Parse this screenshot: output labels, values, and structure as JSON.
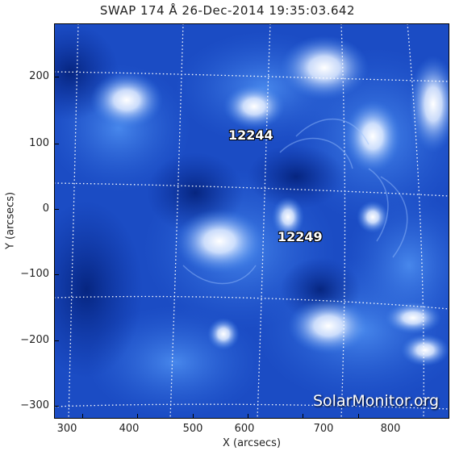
{
  "image": {
    "title": "SWAP 174 Å 26-Dec-2014 19:35:03.642",
    "instrument": "SWAP",
    "wavelength": "174 Å",
    "date": "26-Dec-2014",
    "time": "19:35:03.642",
    "watermark": "SolarMonitor.org",
    "colors": {
      "background": "#0a2e9a",
      "mid": "#2a6be0",
      "bright": "#eaf2ff",
      "grid": "#ffffff"
    }
  },
  "axes": {
    "xlabel": "X (arcsecs)",
    "ylabel": "Y (arcsecs)",
    "xticks": [
      "300",
      "400",
      "500",
      "600",
      "700",
      "800"
    ],
    "yticks": [
      "200",
      "100",
      "0",
      "−100",
      "−200",
      "−300"
    ]
  },
  "regions": [
    {
      "label": "12244"
    },
    {
      "label": "12249"
    }
  ]
}
